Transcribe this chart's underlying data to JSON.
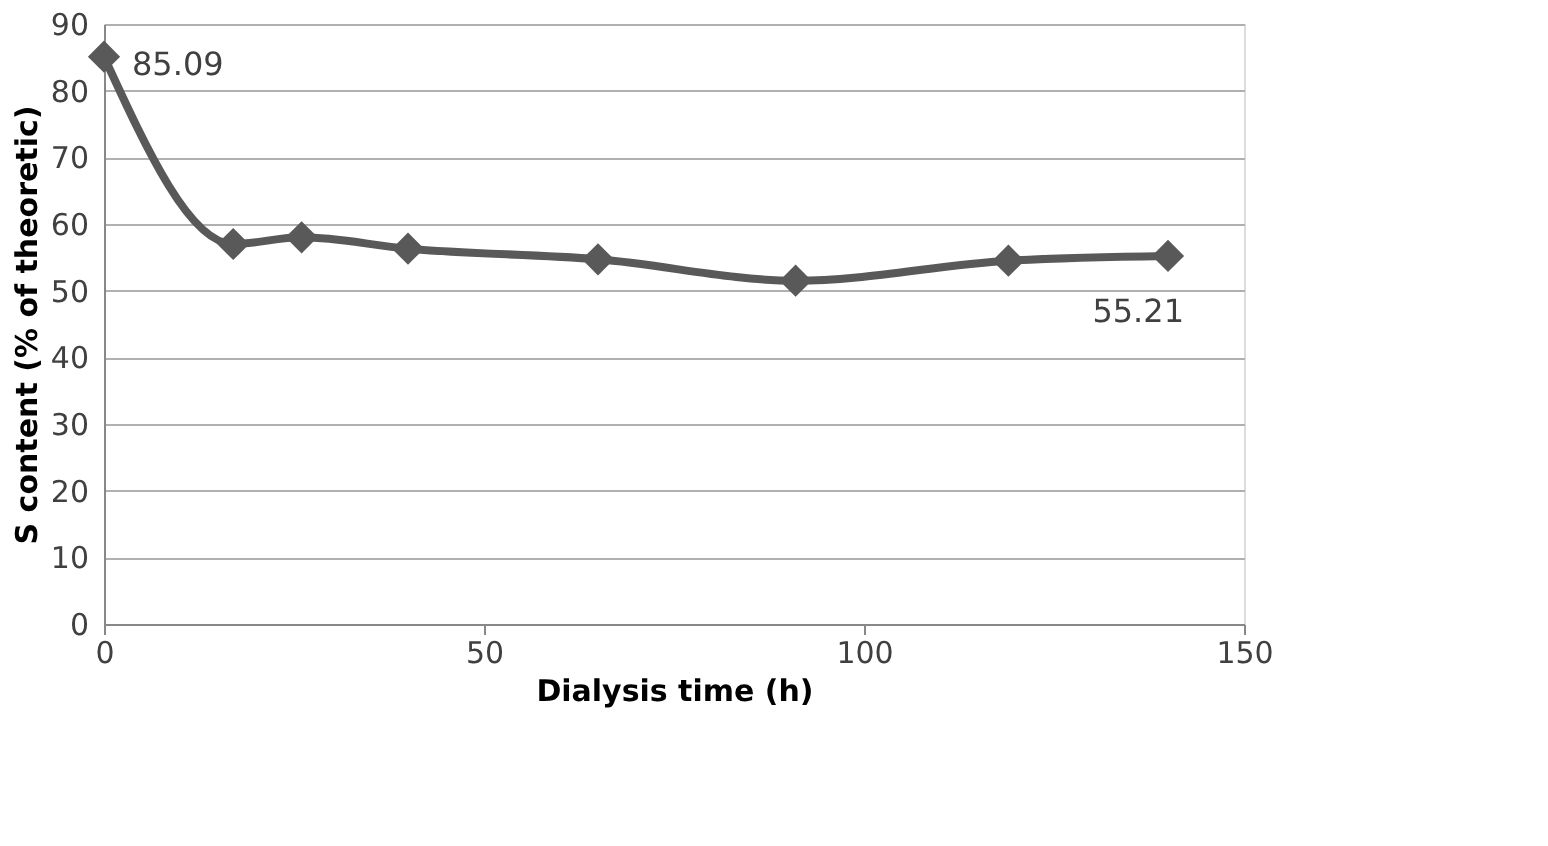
{
  "chart_data": {
    "type": "line",
    "xlabel": "Dialysis time (h)",
    "ylabel": "S content (% of theoretic)",
    "x": [
      0,
      17,
      26,
      40,
      65,
      91,
      119,
      140
    ],
    "series": [
      {
        "color": "#595959",
        "values": [
          85.09,
          57,
          58,
          56.3,
          54.7,
          51.5,
          54.5,
          55.21
        ],
        "value_labels": [
          "85.09",
          null,
          null,
          null,
          null,
          null,
          null,
          "55.21"
        ]
      }
    ],
    "xlim": [
      0,
      150
    ],
    "xticks": [
      0,
      50,
      100,
      150
    ],
    "ylim": [
      0,
      90
    ],
    "yticks": [
      0,
      10,
      20,
      30,
      40,
      50,
      60,
      70,
      80,
      90
    ],
    "grid": "y",
    "marker": "diamond",
    "line_style": "solid"
  }
}
